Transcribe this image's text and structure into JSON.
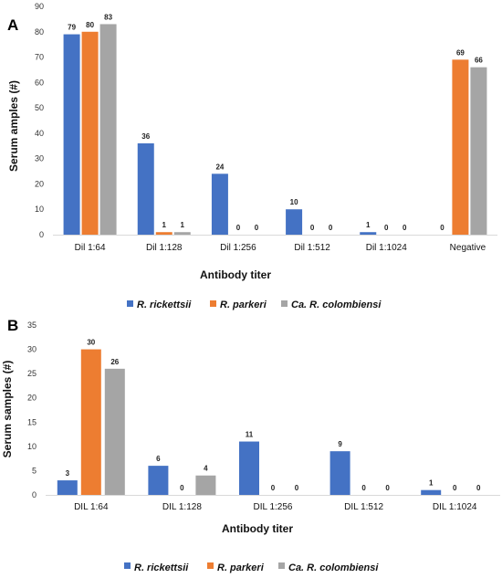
{
  "colors": {
    "rickettsii": "#4472C4",
    "parkeri": "#ED7D31",
    "colombiensi": "#A5A5A5"
  },
  "chart_data": [
    {
      "type": "bar",
      "panel_label": "A",
      "categories": [
        "Dil 1:64",
        "Dil 1:128",
        "Dil 1:256",
        "Dil 1:512",
        "Dil 1:1024",
        "Negative"
      ],
      "series": [
        {
          "name": "R. rickettsii",
          "values": [
            79,
            36,
            24,
            10,
            1,
            0
          ]
        },
        {
          "name": "R. parkeri",
          "values": [
            80,
            1,
            0,
            0,
            0,
            69
          ]
        },
        {
          "name": "Ca. R. colombiensi",
          "values": [
            83,
            1,
            0,
            0,
            0,
            66
          ]
        }
      ],
      "value_labels": [
        [
          "79",
          "36",
          "24",
          "10",
          "1",
          "0"
        ],
        [
          "80",
          "1",
          "0",
          "0",
          "0",
          "69"
        ],
        [
          "83",
          "1",
          "0",
          "0",
          "0",
          "66"
        ]
      ],
      "xlabel": "Antibody titer",
      "ylabel": "Serum amples (#)",
      "ylim": [
        0,
        90
      ],
      "yticks": [
        0,
        10,
        20,
        30,
        40,
        50,
        60,
        70,
        80,
        90
      ],
      "grid": false,
      "legend": "bottom"
    },
    {
      "type": "bar",
      "panel_label": "B",
      "categories": [
        "DIL 1:64",
        "DIL 1:128",
        "DIL 1:256",
        "DIL 1:512",
        "DIL 1:1024"
      ],
      "series": [
        {
          "name": "R. rickettsii",
          "values": [
            3,
            6,
            11,
            9,
            1
          ]
        },
        {
          "name": "R. parkeri",
          "values": [
            30,
            0,
            0,
            0,
            0
          ]
        },
        {
          "name": "Ca. R. colombiensi",
          "values": [
            26,
            4,
            0,
            0,
            0
          ]
        }
      ],
      "value_labels": [
        [
          "3",
          "6",
          "11",
          "9",
          "1"
        ],
        [
          "30",
          "0",
          "0",
          "0",
          "0"
        ],
        [
          "26",
          "4",
          "0",
          "0",
          "0"
        ]
      ],
      "xlabel": "Antibody titer",
      "ylabel": "Serum samples (#)",
      "ylim": [
        0,
        35
      ],
      "yticks": [
        0,
        5,
        10,
        15,
        20,
        25,
        30,
        35
      ],
      "grid": false,
      "legend": "bottom"
    }
  ]
}
